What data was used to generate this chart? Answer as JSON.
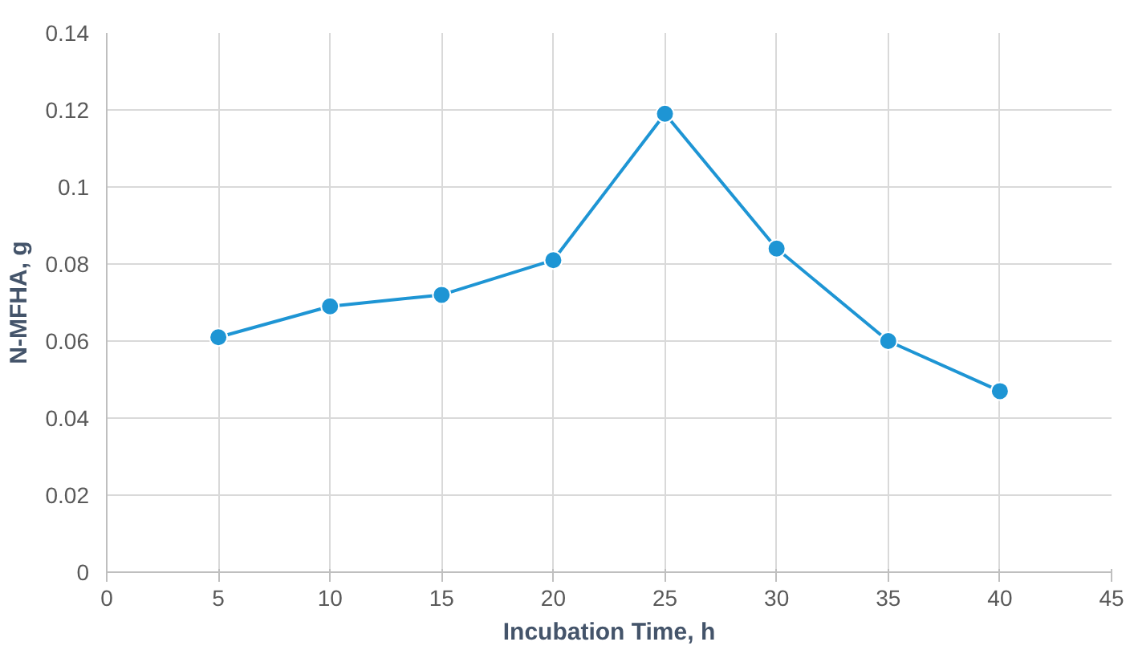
{
  "chart_data": {
    "type": "line",
    "xlabel": "Incubation Time, h",
    "ylabel": "N-MFHA, g",
    "x": [
      5,
      10,
      15,
      20,
      25,
      30,
      35,
      40
    ],
    "series": [
      {
        "color": "#1e95d4",
        "values": [
          0.061,
          0.069,
          0.072,
          0.081,
          0.119,
          0.084,
          0.06,
          0.047
        ]
      }
    ],
    "xlim": [
      0,
      45
    ],
    "xticks": [
      0,
      5,
      10,
      15,
      20,
      25,
      30,
      35,
      40,
      45
    ],
    "ylim": [
      0,
      0.14
    ],
    "yticks": [
      0,
      {
        "value": 0.02,
        "label": "0.02"
      },
      {
        "value": 0.04,
        "label": "0.04"
      },
      {
        "value": 0.06,
        "label": "0.06"
      },
      {
        "value": 0.08,
        "label": "0.08"
      },
      {
        "value": 0.1,
        "label": "0.1"
      },
      {
        "value": 0.12,
        "label": "0.12"
      },
      {
        "value": 0.14,
        "label": "0.14"
      }
    ],
    "grid": true,
    "marker": "circle",
    "line_style": "solid"
  }
}
